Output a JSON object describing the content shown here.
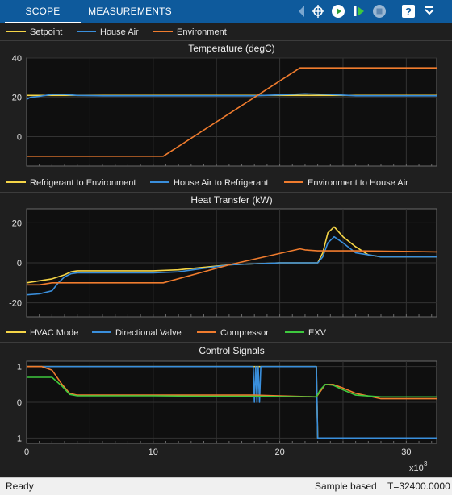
{
  "toolbar": {
    "tabs": [
      {
        "label": "SCOPE",
        "active": true
      },
      {
        "label": "MEASUREMENTS",
        "active": false
      }
    ],
    "icons": [
      "highlight-signal-icon",
      "run-icon",
      "step-forward-icon",
      "stop-icon",
      "help-icon",
      "expand-icon"
    ]
  },
  "panels": [
    {
      "title": "Temperature (degC)",
      "legend": [
        {
          "name": "Setpoint",
          "color": "#f5d547"
        },
        {
          "name": "House Air",
          "color": "#3a8fdc"
        },
        {
          "name": "Environment",
          "color": "#f07c2e"
        }
      ]
    },
    {
      "title": "Heat Transfer (kW)",
      "legend": [
        {
          "name": "Refrigerant to Environment",
          "color": "#f5d547"
        },
        {
          "name": "House Air to Refrigerant",
          "color": "#3a8fdc"
        },
        {
          "name": "Environment to House Air",
          "color": "#f07c2e"
        }
      ]
    },
    {
      "title": "Control Signals",
      "legend": [
        {
          "name": "HVAC Mode",
          "color": "#f5d547"
        },
        {
          "name": "Directional Valve",
          "color": "#3a8fdc"
        },
        {
          "name": "Compressor",
          "color": "#f07c2e"
        },
        {
          "name": "EXV",
          "color": "#3ec93e"
        }
      ]
    }
  ],
  "chart_data": [
    {
      "type": "line",
      "title": "Temperature (degC)",
      "xlim": [
        0,
        32.4
      ],
      "ylim": [
        -15,
        40
      ],
      "yticks": [
        0,
        20,
        40
      ],
      "yticklabels": [
        "0",
        "20",
        "40"
      ],
      "series": [
        {
          "name": "Setpoint",
          "x": [
            0,
            32.4
          ],
          "y": [
            21,
            21
          ]
        },
        {
          "name": "House Air",
          "x": [
            0,
            0.3,
            1,
            2,
            3,
            4,
            6,
            10,
            18,
            20,
            22,
            24,
            26,
            32.4
          ],
          "y": [
            19,
            20,
            20.5,
            21.5,
            21.5,
            21,
            20.8,
            20.8,
            20.8,
            21.3,
            21.8,
            21.5,
            20.8,
            20.8
          ]
        },
        {
          "name": "Environment",
          "x": [
            0,
            10.8,
            21.6,
            32.4
          ],
          "y": [
            -10,
            -10,
            35,
            35
          ]
        }
      ]
    },
    {
      "type": "line",
      "title": "Heat Transfer (kW)",
      "xlim": [
        0,
        32.4
      ],
      "ylim": [
        -27,
        27
      ],
      "yticks": [
        -20,
        0,
        20
      ],
      "yticklabels": [
        "-20",
        "0",
        "20"
      ],
      "series": [
        {
          "name": "Refrigerant to Environment",
          "x": [
            0,
            1,
            2,
            3,
            3.5,
            4,
            6,
            10,
            12,
            16,
            20,
            23,
            23.4,
            23.8,
            24.3,
            25,
            26,
            27,
            28,
            32.4
          ],
          "y": [
            -10,
            -9,
            -8,
            -6,
            -4.5,
            -4,
            -4,
            -4,
            -3.5,
            -1,
            0,
            0,
            5,
            15,
            18,
            13,
            8,
            4,
            3,
            3
          ]
        },
        {
          "name": "House Air to Refrigerant",
          "x": [
            0,
            1,
            2,
            2.5,
            3,
            3.5,
            4,
            6,
            10,
            12,
            16,
            20,
            23,
            23.4,
            23.8,
            24.3,
            25,
            26,
            28,
            32.4
          ],
          "y": [
            -16,
            -15.5,
            -14,
            -10,
            -7,
            -5.5,
            -5,
            -5,
            -5,
            -4.5,
            -1,
            0,
            0,
            3,
            10,
            13,
            10,
            5,
            3,
            3
          ]
        },
        {
          "name": "Environment to House Air",
          "x": [
            0,
            1,
            2,
            10.8,
            16,
            21.6,
            22,
            23,
            26,
            32.4
          ],
          "y": [
            -11,
            -11,
            -10,
            -10,
            -1,
            7,
            6.5,
            6,
            6,
            5.5
          ]
        }
      ]
    },
    {
      "type": "line",
      "title": "Control Signals",
      "xlim": [
        0,
        32.4
      ],
      "ylim": [
        -1.15,
        1.15
      ],
      "yticks": [
        -1,
        0,
        1
      ],
      "yticklabels": [
        "-1",
        "0",
        "1"
      ],
      "xticks": [
        0,
        10,
        20,
        30
      ],
      "xticklabels": [
        "0",
        "10",
        "20",
        "30"
      ],
      "xmultiplier": "x10",
      "xmultiplier_exp": "3",
      "series": [
        {
          "name": "HVAC Mode",
          "x": [
            0,
            22.9,
            23.0,
            32.4
          ],
          "y": [
            1,
            1,
            -1,
            -1
          ]
        },
        {
          "name": "Directional Valve",
          "x": [
            0,
            17.9,
            18.0,
            18.1,
            18.2,
            18.3,
            18.4,
            18.5,
            18.6,
            22.9,
            23.0,
            32.4
          ],
          "y": [
            1,
            1,
            0,
            1,
            0,
            1,
            0,
            1,
            1,
            1,
            -1,
            -1
          ]
        },
        {
          "name": "Compressor",
          "x": [
            0,
            0.6,
            1.2,
            2,
            2.8,
            3.4,
            4,
            6,
            10,
            14,
            18,
            20,
            22.9,
            23.2,
            23.6,
            24.2,
            25,
            26,
            28,
            32.4
          ],
          "y": [
            1,
            1,
            1,
            0.9,
            0.5,
            0.25,
            0.2,
            0.2,
            0.2,
            0.2,
            0.2,
            0.18,
            0.15,
            0.3,
            0.5,
            0.5,
            0.4,
            0.25,
            0.1,
            0.1
          ]
        },
        {
          "name": "EXV",
          "x": [
            0,
            2,
            2.8,
            3.4,
            4,
            6,
            10,
            14,
            18,
            20,
            22.9,
            23.2,
            23.6,
            24.2,
            25,
            26,
            28,
            32.4
          ],
          "y": [
            0.7,
            0.7,
            0.45,
            0.22,
            0.18,
            0.18,
            0.18,
            0.17,
            0.17,
            0.16,
            0.15,
            0.35,
            0.5,
            0.48,
            0.35,
            0.2,
            0.15,
            0.15
          ]
        }
      ]
    }
  ],
  "status": {
    "left": "Ready",
    "mode": "Sample based",
    "time": "T=32400.0000"
  }
}
